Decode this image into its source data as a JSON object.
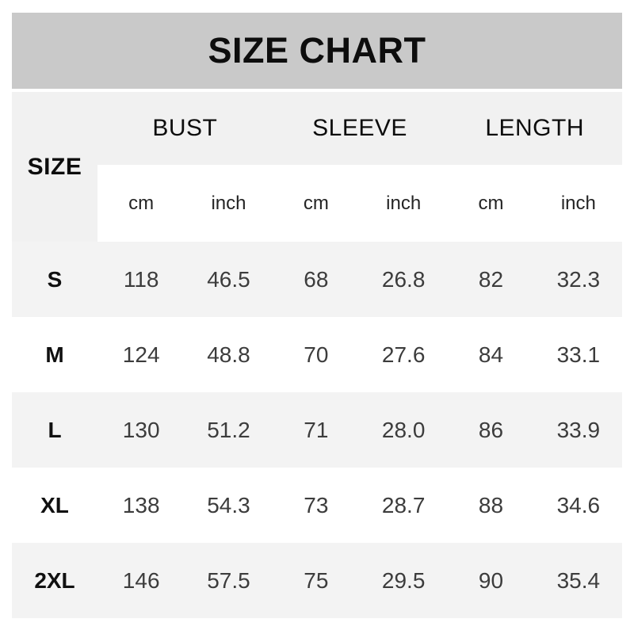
{
  "banner": {
    "title": "SIZE CHART"
  },
  "table": {
    "size_header": "SIZE",
    "groups": [
      {
        "label": "BUST"
      },
      {
        "label": "SLEEVE"
      },
      {
        "label": "LENGTH"
      }
    ],
    "unit_headers": [
      "cm",
      "inch",
      "cm",
      "inch",
      "cm",
      "inch"
    ],
    "rows": [
      {
        "size": "S",
        "values": [
          "118",
          "46.5",
          "68",
          "26.8",
          "82",
          "32.3"
        ]
      },
      {
        "size": "M",
        "values": [
          "124",
          "48.8",
          "70",
          "27.6",
          "84",
          "33.1"
        ]
      },
      {
        "size": "L",
        "values": [
          "130",
          "51.2",
          "71",
          "28.0",
          "86",
          "33.9"
        ]
      },
      {
        "size": "XL",
        "values": [
          "138",
          "54.3",
          "73",
          "28.7",
          "88",
          "34.6"
        ]
      },
      {
        "size": "2XL",
        "values": [
          "146",
          "57.5",
          "75",
          "29.5",
          "90",
          "35.4"
        ]
      }
    ]
  },
  "colors": {
    "banner_bg": "#c9c9c9",
    "header_bg": "#f1f1f1",
    "stripe_bg": "#f3f3f3",
    "page_bg": "#ffffff",
    "title_text": "#0d0d0d",
    "value_text": "#3c3c3c"
  },
  "chart_data": {
    "type": "table",
    "title": "SIZE CHART",
    "columns": [
      "SIZE",
      "BUST cm",
      "BUST inch",
      "SLEEVE cm",
      "SLEEVE inch",
      "LENGTH cm",
      "LENGTH inch"
    ],
    "rows": [
      [
        "S",
        118,
        46.5,
        68,
        26.8,
        82,
        32.3
      ],
      [
        "M",
        124,
        48.8,
        70,
        27.6,
        84,
        33.1
      ],
      [
        "L",
        130,
        51.2,
        71,
        28.0,
        86,
        33.9
      ],
      [
        "XL",
        138,
        54.3,
        73,
        28.7,
        88,
        34.6
      ],
      [
        "2XL",
        146,
        57.5,
        75,
        29.5,
        90,
        35.4
      ]
    ],
    "layout": {
      "striped_rows": [
        "S",
        "L",
        "2XL"
      ],
      "header_grouped_units": true
    }
  }
}
